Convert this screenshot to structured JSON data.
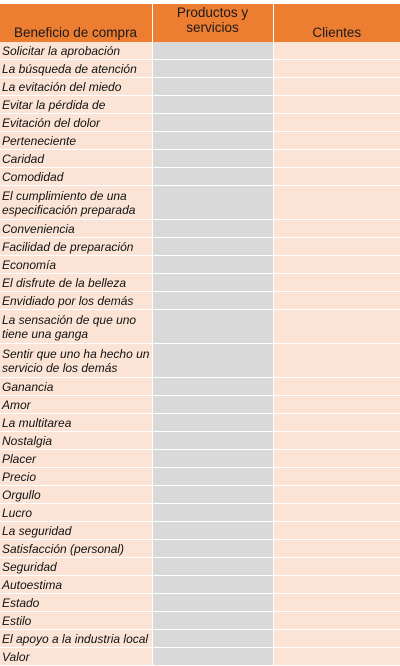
{
  "table": {
    "headers": {
      "benefit": "Beneficio de compra",
      "products": "Productos y servicios",
      "clients": "Clientes"
    },
    "rows": [
      {
        "label": "Solicitar la aprobación",
        "lines": 1
      },
      {
        "label": "La búsqueda de atención",
        "lines": 1
      },
      {
        "label": "La evitación del miedo",
        "lines": 1
      },
      {
        "label": "Evitar la pérdida de",
        "lines": 1
      },
      {
        "label": "Evitación del dolor",
        "lines": 1
      },
      {
        "label": "Perteneciente",
        "lines": 1
      },
      {
        "label": "Caridad",
        "lines": 1
      },
      {
        "label": "Comodidad",
        "lines": 1
      },
      {
        "label": "El cumplimiento de una especificación preparada",
        "lines": 2
      },
      {
        "label": "Conveniencia",
        "lines": 1
      },
      {
        "label": "Facilidad de preparación",
        "lines": 1
      },
      {
        "label": "Economía",
        "lines": 1
      },
      {
        "label": "El disfrute de la belleza",
        "lines": 1
      },
      {
        "label": "Envidiado por los demás",
        "lines": 1
      },
      {
        "label": "La sensación de que uno tiene una ganga",
        "lines": 2
      },
      {
        "label": "Sentir que uno ha hecho un servicio de los demás",
        "lines": 2
      },
      {
        "label": "Ganancia",
        "lines": 1
      },
      {
        "label": "Amor",
        "lines": 1
      },
      {
        "label": "La multitarea",
        "lines": 1
      },
      {
        "label": "Nostalgia",
        "lines": 1
      },
      {
        "label": "Placer",
        "lines": 1
      },
      {
        "label": "Precio",
        "lines": 1
      },
      {
        "label": "Orgullo",
        "lines": 1
      },
      {
        "label": "Lucro",
        "lines": 1
      },
      {
        "label": "La seguridad",
        "lines": 1
      },
      {
        "label": "Satisfacción (personal)",
        "lines": 1
      },
      {
        "label": "Seguridad",
        "lines": 1
      },
      {
        "label": "Autoestima",
        "lines": 1
      },
      {
        "label": "Estado",
        "lines": 1
      },
      {
        "label": "Estilo",
        "lines": 1
      },
      {
        "label": "El apoyo a la industria local",
        "lines": 1
      },
      {
        "label": "Valor",
        "lines": 1
      }
    ]
  },
  "colors": {
    "header": "#ed7d31",
    "label_fill": "#fbe4d5",
    "products_fill": "#d9d9d9",
    "clients_fill": "#fbe4d5"
  }
}
